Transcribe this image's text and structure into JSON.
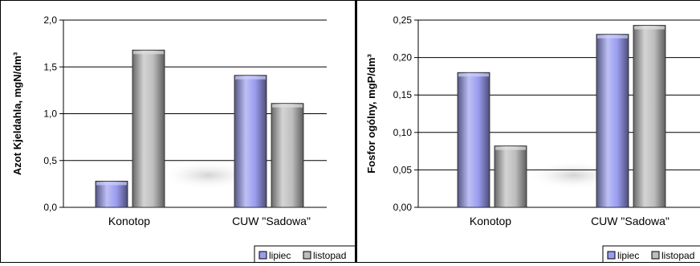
{
  "chart_data": [
    {
      "type": "bar",
      "categories": [
        "Konotop",
        "CUW \"Sadowa\""
      ],
      "series": [
        {
          "name": "lipiec",
          "values": [
            0.28,
            1.41
          ]
        },
        {
          "name": "listopad",
          "values": [
            1.68,
            1.11
          ]
        }
      ],
      "ylabel": "Azot Kjeldahla, mgN/dm³",
      "xlabel": "",
      "title": "",
      "ylim": [
        0,
        2.0
      ],
      "yticks": [
        "0,0",
        "0,5",
        "1,0",
        "1,5",
        "2,0"
      ],
      "ytick_values": [
        0,
        0.5,
        1.0,
        1.5,
        2.0
      ],
      "grid": true,
      "legend": "bottom-right"
    },
    {
      "type": "bar",
      "categories": [
        "Konotop",
        "CUW \"Sadowa\""
      ],
      "series": [
        {
          "name": "lipiec",
          "values": [
            0.18,
            0.231
          ]
        },
        {
          "name": "listopad",
          "values": [
            0.082,
            0.243
          ]
        }
      ],
      "ylabel": "Fosfor ogólny, mgP/dm³",
      "xlabel": "",
      "title": "",
      "ylim": [
        0,
        0.25
      ],
      "yticks": [
        "0,00",
        "0,05",
        "0,10",
        "0,15",
        "0,20",
        "0,25"
      ],
      "ytick_values": [
        0,
        0.05,
        0.1,
        0.15,
        0.2,
        0.25
      ],
      "grid": true,
      "legend": "bottom-right"
    }
  ],
  "colors": {
    "lipiec": "#9a9cf0",
    "listopad": "#bdbdbd"
  }
}
